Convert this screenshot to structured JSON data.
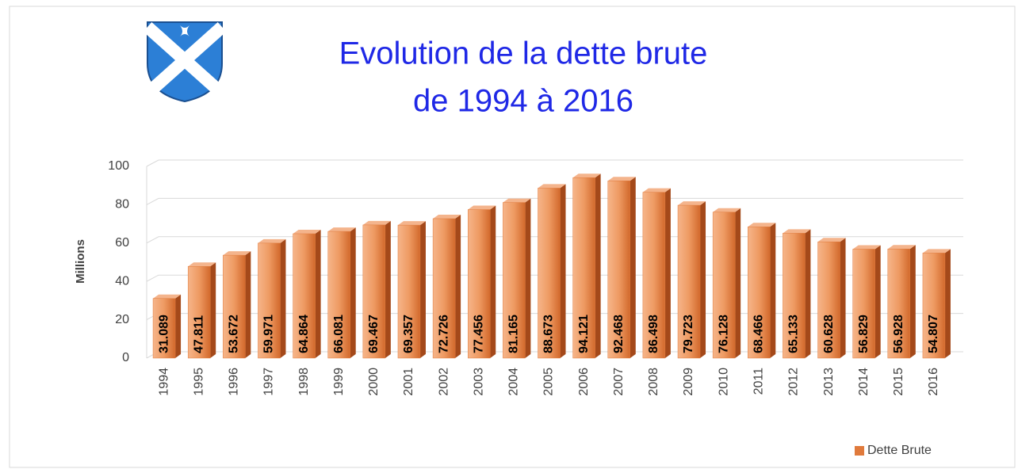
{
  "chart_data": {
    "type": "bar3d",
    "title": [
      "Evolution de la dette brute",
      "de 1994 à 2016"
    ],
    "ylabel": "Millions",
    "categories": [
      "1994",
      "1995",
      "1996",
      "1997",
      "1998",
      "1999",
      "2000",
      "2001",
      "2002",
      "2003",
      "2004",
      "2005",
      "2006",
      "2007",
      "2008",
      "2009",
      "2010",
      "2011",
      "2012",
      "2013",
      "2014",
      "2015",
      "2016"
    ],
    "series": [
      {
        "name": "Dette Brute",
        "color": "#e07a3c",
        "values": [
          31.089,
          47.811,
          53.672,
          59.971,
          64.864,
          66.081,
          69.467,
          69.357,
          72.726,
          77.456,
          81.165,
          88.673,
          94.121,
          92.468,
          86.498,
          79.723,
          76.128,
          68.466,
          65.133,
          60.628,
          56.829,
          56.928,
          54.807
        ]
      }
    ],
    "ylim": [
      0,
      100
    ],
    "yticks": [
      0,
      20,
      40,
      60,
      80,
      100
    ],
    "grid": true,
    "legend": "bottom-right"
  }
}
